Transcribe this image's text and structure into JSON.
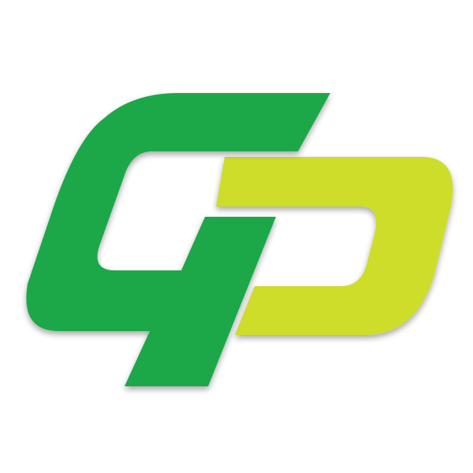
{
  "logo": {
    "lettering": "GD",
    "colors": {
      "background": "#ffffff",
      "g_letter": "#1ba84a",
      "d_letter": "#cddd2a",
      "shadow": "#000000"
    }
  }
}
